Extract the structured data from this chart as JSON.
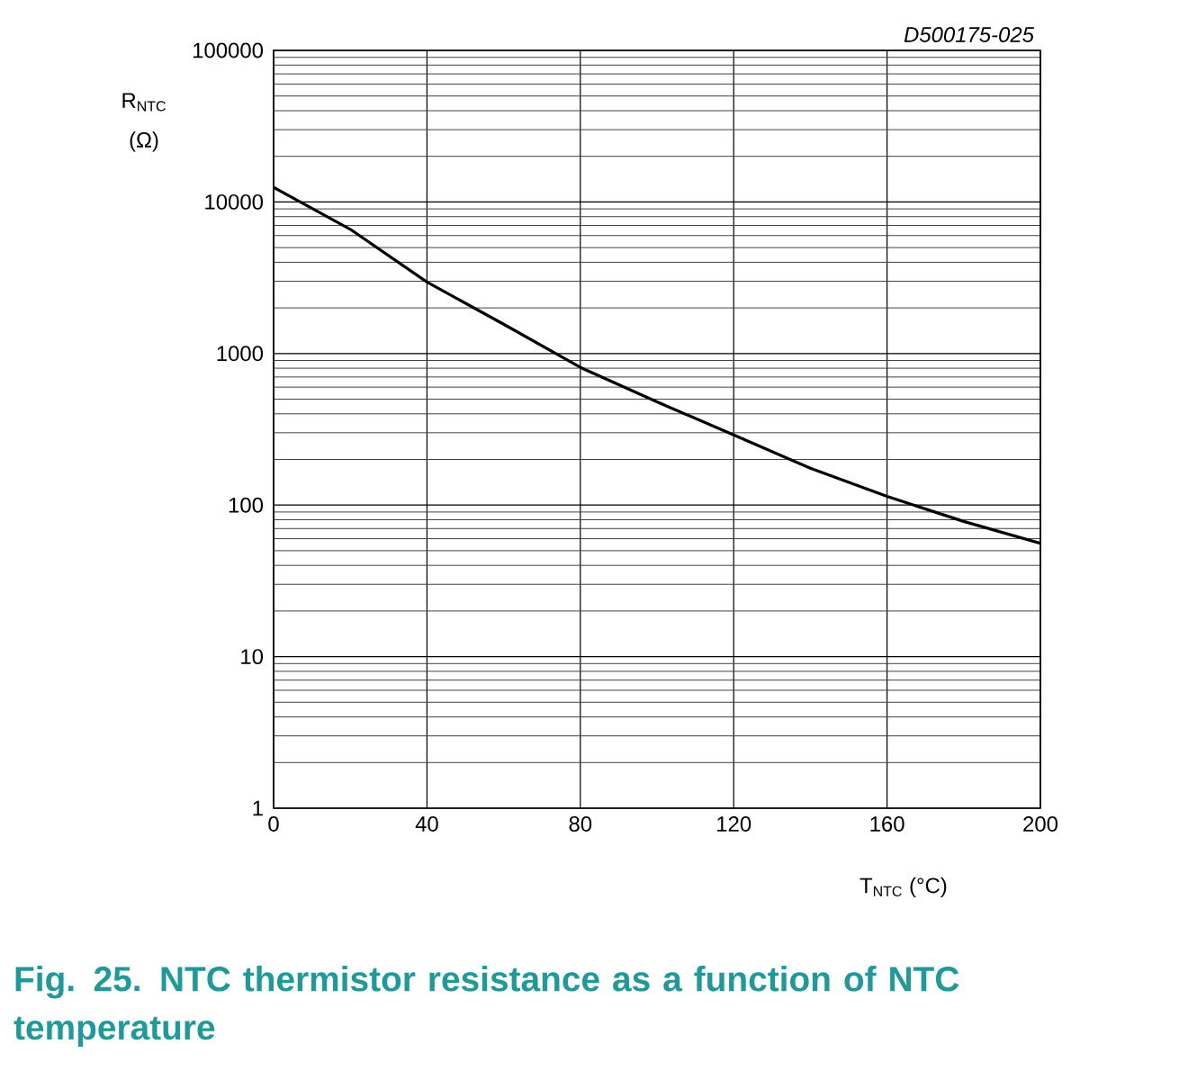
{
  "chart_data": {
    "type": "line",
    "title": "Fig. 25. NTC thermistor resistance as a function of NTC temperature",
    "xlabel": "T$_{NTC}$ (°C)",
    "ylabel": "R$_{NTC}$ (Ω)",
    "annotations": [
      "D500175-025"
    ],
    "x": [
      0,
      20,
      40,
      60,
      80,
      100,
      120,
      140,
      160,
      180,
      200
    ],
    "series": [
      {
        "color": "#000000",
        "values": [
          12500,
          6600,
          2960,
          1560,
          810,
          480,
          290,
          175,
          114,
          78,
          56
        ]
      }
    ],
    "xlim": [
      0,
      200
    ],
    "xticks": [
      0,
      40,
      80,
      120,
      160,
      200
    ],
    "ylim": [
      1,
      100000
    ],
    "yticks": [
      1,
      10,
      100,
      1000,
      10000,
      100000
    ],
    "log": true,
    "grid": true,
    "marker": "none",
    "line_style": "solid"
  }
}
